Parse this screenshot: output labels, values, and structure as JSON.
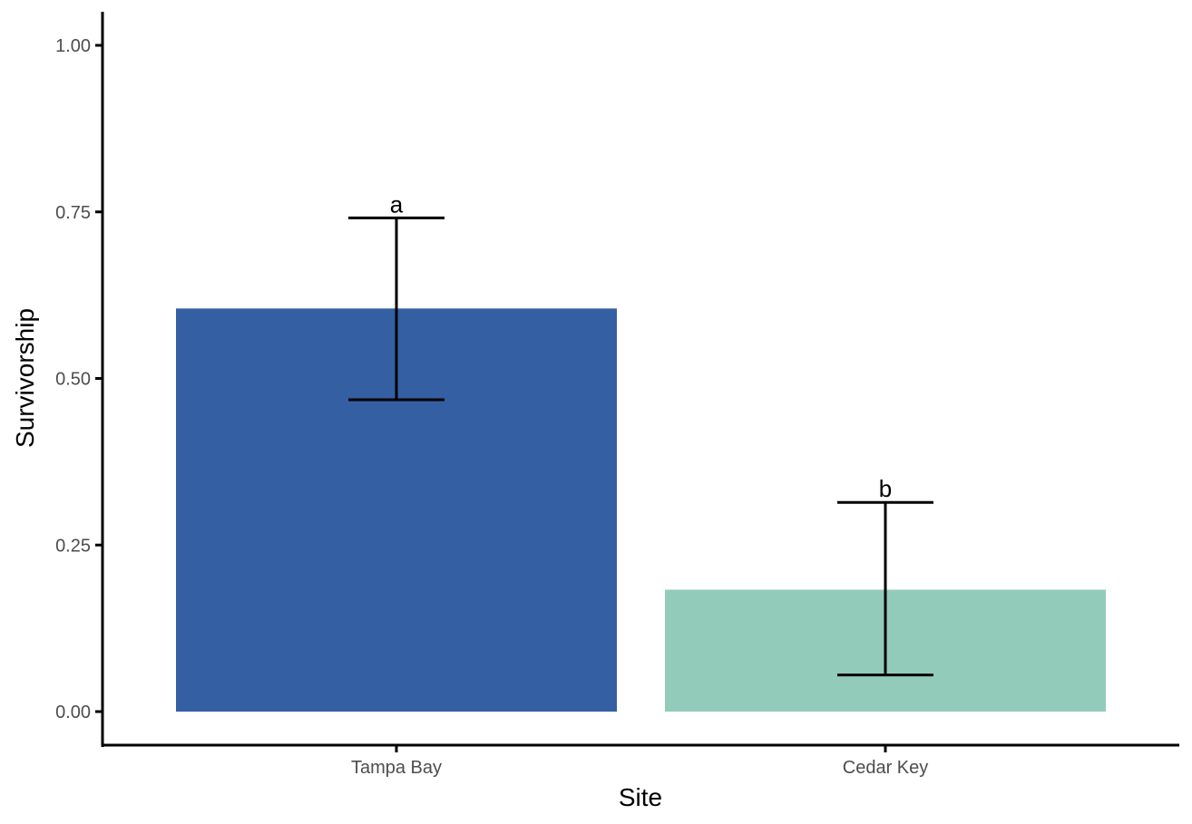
{
  "chart_data": {
    "type": "bar",
    "xlabel": "Site",
    "ylabel": "Survivorship",
    "categories": [
      "Tampa Bay",
      "Cedar Key"
    ],
    "values": [
      0.605,
      0.183
    ],
    "error_low": [
      0.468,
      0.055
    ],
    "error_high": [
      0.741,
      0.314
    ],
    "significance_labels": [
      "a",
      "b"
    ],
    "colors": [
      "#355FA3",
      "#93CBBA"
    ],
    "ylim": [
      0,
      1
    ],
    "yticks": [
      0.0,
      0.25,
      0.5,
      0.75,
      1.0
    ],
    "ytick_labels": [
      "0.00",
      "0.25",
      "0.50",
      "0.75",
      "1.00"
    ],
    "grid": false,
    "legend": "none"
  }
}
